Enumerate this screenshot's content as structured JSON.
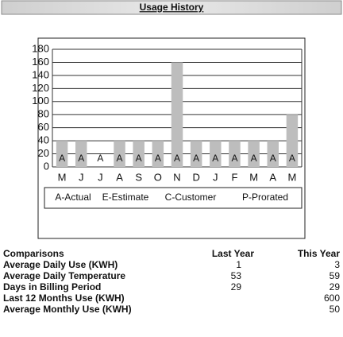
{
  "header": {
    "title": "Usage History"
  },
  "chart_data": {
    "type": "bar",
    "categories": [
      "M",
      "J",
      "J",
      "A",
      "S",
      "O",
      "N",
      "D",
      "J",
      "F",
      "M",
      "A",
      "M"
    ],
    "values": [
      40,
      40,
      0,
      40,
      40,
      40,
      160,
      40,
      40,
      40,
      40,
      40,
      80
    ],
    "read_codes": [
      "A",
      "A",
      "A",
      "A",
      "A",
      "A",
      "A",
      "A",
      "A",
      "A",
      "A",
      "A",
      "A"
    ],
    "color": "#bdbdbd",
    "ylim": [
      0,
      180
    ],
    "yticks": [
      0,
      20,
      40,
      60,
      80,
      100,
      120,
      140,
      160,
      180
    ],
    "grid": true,
    "legend": [
      "A-Actual",
      "E-Estimate",
      "C-Customer",
      "P-Prorated"
    ]
  },
  "comparisons": {
    "headers": [
      "Comparisons",
      "Last Year",
      "This Year"
    ],
    "rows": [
      [
        "Average Daily Use (KWH)",
        1,
        3
      ],
      [
        "Average Daily Temperature",
        53,
        59
      ],
      [
        "Days in Billing Period",
        29,
        29
      ],
      [
        "Last 12 Months Use (KWH)",
        null,
        600
      ],
      [
        "Average Monthly Use (KWH)",
        null,
        50
      ]
    ]
  }
}
